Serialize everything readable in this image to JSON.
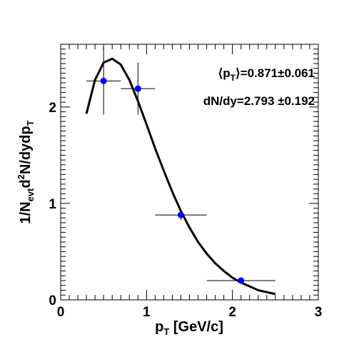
{
  "chart_data": {
    "type": "scatter",
    "title": "",
    "xlabel": "p_T [GeV/c]",
    "xlabel_main": "p",
    "xlabel_sub": "T",
    "xlabel_rest": " [GeV/c]",
    "ylabel": "1/N_evt d²N/dydp_T",
    "ylabel_parts": {
      "a": "1/N",
      "a_sub": "evt",
      "b": "d",
      "b_sup": "2",
      "c": "N/dydp",
      "c_sub": "T"
    },
    "xlim": [
      0,
      3
    ],
    "ylim": [
      0,
      2.65
    ],
    "grid": false,
    "x_ticks": [
      0,
      1,
      2,
      3
    ],
    "y_ticks": [
      0,
      1,
      2
    ],
    "annotations": {
      "mean_pt": {
        "open": "⟨p",
        "sub": "T",
        "close": "⟩=0.871±0.061"
      },
      "dndy": "dN/dy=2.793 ±0.192"
    },
    "series": [
      {
        "marker": "circle",
        "color": "#0000ff",
        "points": [
          {
            "x": 0.5,
            "y": 2.27,
            "xerr": 0.2,
            "yerr": 0.35
          },
          {
            "x": 0.9,
            "y": 2.19,
            "xerr": 0.2,
            "yerr": 0.27
          },
          {
            "x": 1.4,
            "y": 0.88,
            "xerr": 0.3,
            "yerr": 0.05
          },
          {
            "x": 2.1,
            "y": 0.2,
            "xerr": 0.4,
            "yerr": 0.03
          }
        ]
      },
      {
        "marker": "none",
        "color": "#000000",
        "curve": [
          {
            "x": 0.3,
            "y": 1.93
          },
          {
            "x": 0.4,
            "y": 2.28
          },
          {
            "x": 0.5,
            "y": 2.46
          },
          {
            "x": 0.6,
            "y": 2.5
          },
          {
            "x": 0.7,
            "y": 2.44
          },
          {
            "x": 0.8,
            "y": 2.28
          },
          {
            "x": 0.9,
            "y": 2.06
          },
          {
            "x": 1.0,
            "y": 1.82
          },
          {
            "x": 1.1,
            "y": 1.57
          },
          {
            "x": 1.2,
            "y": 1.34
          },
          {
            "x": 1.3,
            "y": 1.12
          },
          {
            "x": 1.4,
            "y": 0.92
          },
          {
            "x": 1.5,
            "y": 0.75
          },
          {
            "x": 1.6,
            "y": 0.6
          },
          {
            "x": 1.7,
            "y": 0.48
          },
          {
            "x": 1.8,
            "y": 0.38
          },
          {
            "x": 1.9,
            "y": 0.3
          },
          {
            "x": 2.0,
            "y": 0.23
          },
          {
            "x": 2.1,
            "y": 0.18
          },
          {
            "x": 2.2,
            "y": 0.14
          },
          {
            "x": 2.3,
            "y": 0.1
          },
          {
            "x": 2.4,
            "y": 0.08
          },
          {
            "x": 2.5,
            "y": 0.06
          }
        ]
      }
    ]
  }
}
